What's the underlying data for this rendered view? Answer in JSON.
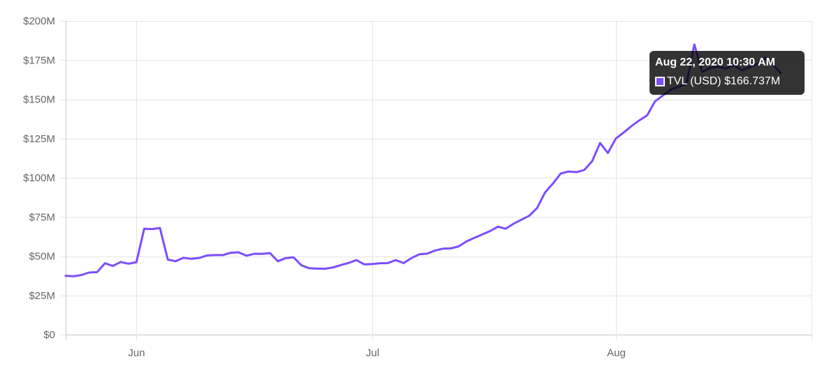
{
  "chart_data": {
    "type": "line",
    "title": "",
    "xlabel": "",
    "ylabel": "",
    "ylim": [
      0,
      200
    ],
    "y_ticks": [
      0,
      25,
      50,
      75,
      100,
      125,
      150,
      175,
      200
    ],
    "y_tick_labels": [
      "$0",
      "$25M",
      "$50M",
      "$75M",
      "$100M",
      "$125M",
      "$150M",
      "$175M",
      "$200M"
    ],
    "x_range": [
      "2020-05-23",
      "2020-08-26"
    ],
    "x_ticks": [
      {
        "date": "2020-06-01",
        "label": "Jun"
      },
      {
        "date": "2020-07-01",
        "label": "Jul"
      },
      {
        "date": "2020-08-01",
        "label": "Aug"
      }
    ],
    "grid": true,
    "series": [
      {
        "name": "TVL (USD)",
        "color": "#7c4dff",
        "points": [
          [
            "2020-05-23",
            37.5
          ],
          [
            "2020-05-24",
            37.2
          ],
          [
            "2020-05-25",
            38.0
          ],
          [
            "2020-05-26",
            39.6
          ],
          [
            "2020-05-27",
            39.8
          ],
          [
            "2020-05-28",
            45.5
          ],
          [
            "2020-05-29",
            43.8
          ],
          [
            "2020-05-30",
            46.3
          ],
          [
            "2020-05-31",
            45.2
          ],
          [
            "2020-06-01",
            46.2
          ],
          [
            "2020-06-02",
            67.5
          ],
          [
            "2020-06-03",
            67.3
          ],
          [
            "2020-06-04",
            68.0
          ],
          [
            "2020-06-05",
            47.8
          ],
          [
            "2020-06-06",
            46.8
          ],
          [
            "2020-06-07",
            49.0
          ],
          [
            "2020-06-08",
            48.3
          ],
          [
            "2020-06-09",
            48.9
          ],
          [
            "2020-06-10",
            50.5
          ],
          [
            "2020-06-11",
            50.7
          ],
          [
            "2020-06-12",
            50.7
          ],
          [
            "2020-06-13",
            52.2
          ],
          [
            "2020-06-14",
            52.5
          ],
          [
            "2020-06-15",
            50.3
          ],
          [
            "2020-06-16",
            51.5
          ],
          [
            "2020-06-17",
            51.5
          ],
          [
            "2020-06-18",
            52.0
          ],
          [
            "2020-06-19",
            46.8
          ],
          [
            "2020-06-20",
            48.8
          ],
          [
            "2020-06-21",
            49.3
          ],
          [
            "2020-06-22",
            44.2
          ],
          [
            "2020-06-23",
            42.3
          ],
          [
            "2020-06-24",
            42.1
          ],
          [
            "2020-06-25",
            42.0
          ],
          [
            "2020-06-26",
            42.8
          ],
          [
            "2020-06-27",
            44.3
          ],
          [
            "2020-06-28",
            45.7
          ],
          [
            "2020-06-29",
            47.5
          ],
          [
            "2020-06-30",
            44.8
          ],
          [
            "2020-07-01",
            45.0
          ],
          [
            "2020-07-02",
            45.5
          ],
          [
            "2020-07-03",
            45.6
          ],
          [
            "2020-07-04",
            47.5
          ],
          [
            "2020-07-05",
            45.6
          ],
          [
            "2020-07-06",
            48.8
          ],
          [
            "2020-07-07",
            51.2
          ],
          [
            "2020-07-08",
            51.6
          ],
          [
            "2020-07-09",
            53.6
          ],
          [
            "2020-07-10",
            54.8
          ],
          [
            "2020-07-11",
            55.0
          ],
          [
            "2020-07-12",
            56.2
          ],
          [
            "2020-07-13",
            59.4
          ],
          [
            "2020-07-14",
            61.7
          ],
          [
            "2020-07-15",
            63.8
          ],
          [
            "2020-07-16",
            66.0
          ],
          [
            "2020-07-17",
            68.8
          ],
          [
            "2020-07-18",
            67.5
          ],
          [
            "2020-07-19",
            70.7
          ],
          [
            "2020-07-20",
            73.3
          ],
          [
            "2020-07-21",
            75.8
          ],
          [
            "2020-07-22",
            80.8
          ],
          [
            "2020-07-23",
            90.6
          ],
          [
            "2020-07-24",
            96.3
          ],
          [
            "2020-07-25",
            102.7
          ],
          [
            "2020-07-26",
            104.0
          ],
          [
            "2020-07-27",
            103.6
          ],
          [
            "2020-07-28",
            105.0
          ],
          [
            "2020-07-29",
            110.6
          ],
          [
            "2020-07-30",
            122.2
          ],
          [
            "2020-07-31",
            115.8
          ],
          [
            "2020-08-01",
            125.0
          ],
          [
            "2020-08-02",
            128.8
          ],
          [
            "2020-08-03",
            133.0
          ],
          [
            "2020-08-04",
            136.6
          ],
          [
            "2020-08-05",
            139.8
          ],
          [
            "2020-08-06",
            148.7
          ],
          [
            "2020-08-07",
            152.5
          ],
          [
            "2020-08-08",
            156.2
          ],
          [
            "2020-08-09",
            158.0
          ],
          [
            "2020-08-10",
            160.0
          ],
          [
            "2020-08-11",
            185.0
          ],
          [
            "2020-08-12",
            167.5
          ],
          [
            "2020-08-13",
            170.0
          ],
          [
            "2020-08-14",
            171.0
          ],
          [
            "2020-08-15",
            169.5
          ],
          [
            "2020-08-16",
            172.0
          ],
          [
            "2020-08-17",
            168.5
          ],
          [
            "2020-08-18",
            170.5
          ],
          [
            "2020-08-19",
            172.5
          ],
          [
            "2020-08-20",
            176.5
          ],
          [
            "2020-08-21",
            172.0
          ],
          [
            "2020-08-22",
            166.7
          ]
        ]
      }
    ],
    "tooltip": {
      "title": "Aug 22, 2020 10:30 AM",
      "label": "TVL (USD) $166.737M"
    }
  }
}
